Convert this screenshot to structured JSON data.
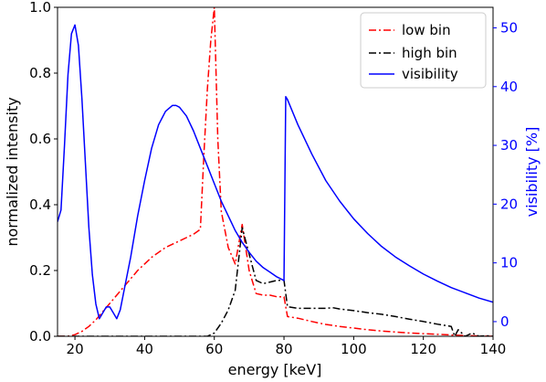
{
  "chart_data": {
    "type": "line",
    "xlabel": "energy [keV]",
    "ylabel": "normalized intensity",
    "y2label": "visibility [%]",
    "xlim": [
      15,
      140
    ],
    "ylim": [
      0,
      1.0
    ],
    "y2lim": [
      -2.5,
      53.5
    ],
    "xticks": [
      20,
      40,
      60,
      80,
      100,
      120,
      140
    ],
    "yticks": [
      0.0,
      0.2,
      0.4,
      0.6,
      0.8,
      1.0
    ],
    "y2ticks": [
      0,
      10,
      20,
      30,
      40,
      50
    ],
    "legend": {
      "position": "top-right"
    },
    "colors": {
      "low_bin": "#ff0000",
      "high_bin": "#000000",
      "visibility": "#0000ff"
    },
    "series": [
      {
        "name": "low bin",
        "axis": "left",
        "style": "dash-dot",
        "x": [
          15,
          18,
          20,
          22,
          24,
          26,
          28,
          30,
          32,
          34,
          36,
          38,
          40,
          42,
          44,
          46,
          48,
          50,
          52,
          54,
          56,
          57,
          58,
          59,
          60,
          61,
          62,
          64,
          66,
          68,
          70,
          72,
          74,
          76,
          78,
          80,
          81,
          84,
          88,
          92,
          96,
          100,
          104,
          108,
          112,
          116,
          120,
          124,
          128,
          132,
          136,
          140
        ],
        "y": [
          0.0,
          0.0,
          0.005,
          0.015,
          0.03,
          0.05,
          0.075,
          0.1,
          0.125,
          0.15,
          0.175,
          0.2,
          0.22,
          0.24,
          0.255,
          0.27,
          0.28,
          0.29,
          0.3,
          0.31,
          0.325,
          0.55,
          0.75,
          0.9,
          1.0,
          0.6,
          0.38,
          0.27,
          0.22,
          0.34,
          0.2,
          0.13,
          0.125,
          0.125,
          0.12,
          0.12,
          0.06,
          0.055,
          0.045,
          0.036,
          0.03,
          0.025,
          0.02,
          0.016,
          0.013,
          0.01,
          0.008,
          0.006,
          0.004,
          0.002,
          0.001,
          0.0
        ]
      },
      {
        "name": "high bin",
        "axis": "left",
        "style": "dash-dot",
        "x": [
          15,
          20,
          30,
          40,
          50,
          58,
          60,
          62,
          64,
          66,
          68,
          70,
          72,
          74,
          76,
          78,
          80,
          81,
          84,
          88,
          92,
          94,
          96,
          100,
          104,
          108,
          112,
          116,
          120,
          124,
          128,
          129,
          130,
          132,
          134,
          136,
          138,
          140
        ],
        "y": [
          0.0,
          0.0,
          0.0,
          0.0,
          0.0,
          0.0,
          0.01,
          0.04,
          0.08,
          0.14,
          0.33,
          0.25,
          0.17,
          0.16,
          0.165,
          0.17,
          0.17,
          0.09,
          0.085,
          0.085,
          0.085,
          0.087,
          0.083,
          0.078,
          0.072,
          0.067,
          0.06,
          0.052,
          0.045,
          0.037,
          0.03,
          0.0,
          0.02,
          0.0,
          0.01,
          0.0,
          0.002,
          0.0
        ]
      },
      {
        "name": "visibility",
        "axis": "right",
        "style": "solid",
        "x": [
          15,
          16,
          17,
          18,
          19,
          20,
          21,
          22,
          23,
          24,
          25,
          26,
          27,
          28,
          29,
          30,
          31,
          32,
          33,
          34,
          35,
          36,
          38,
          40,
          42,
          44,
          46,
          48,
          49,
          50,
          52,
          54,
          56,
          58,
          60,
          62,
          64,
          66,
          68,
          70,
          72,
          74,
          76,
          78,
          80,
          80.5,
          81,
          84,
          88,
          92,
          96,
          100,
          104,
          108,
          112,
          116,
          120,
          124,
          128,
          132,
          136,
          140
        ],
        "y": [
          17,
          19,
          30,
          42,
          49,
          50.5,
          47,
          38,
          27,
          16,
          8,
          3,
          0.5,
          1.5,
          2.5,
          2.5,
          1.5,
          0.5,
          2,
          5,
          8,
          11,
          18,
          24,
          29.5,
          33.5,
          35.8,
          36.8,
          36.8,
          36.5,
          35,
          32.5,
          29.5,
          26.5,
          23.5,
          20.5,
          18,
          15.5,
          13.5,
          11.8,
          10.3,
          9.2,
          8.4,
          7.6,
          7.0,
          38.3,
          37.8,
          33.5,
          28.5,
          24,
          20.5,
          17.5,
          15,
          12.8,
          11,
          9.5,
          8.1,
          6.9,
          5.8,
          4.9,
          4.0,
          3.3
        ]
      }
    ]
  }
}
